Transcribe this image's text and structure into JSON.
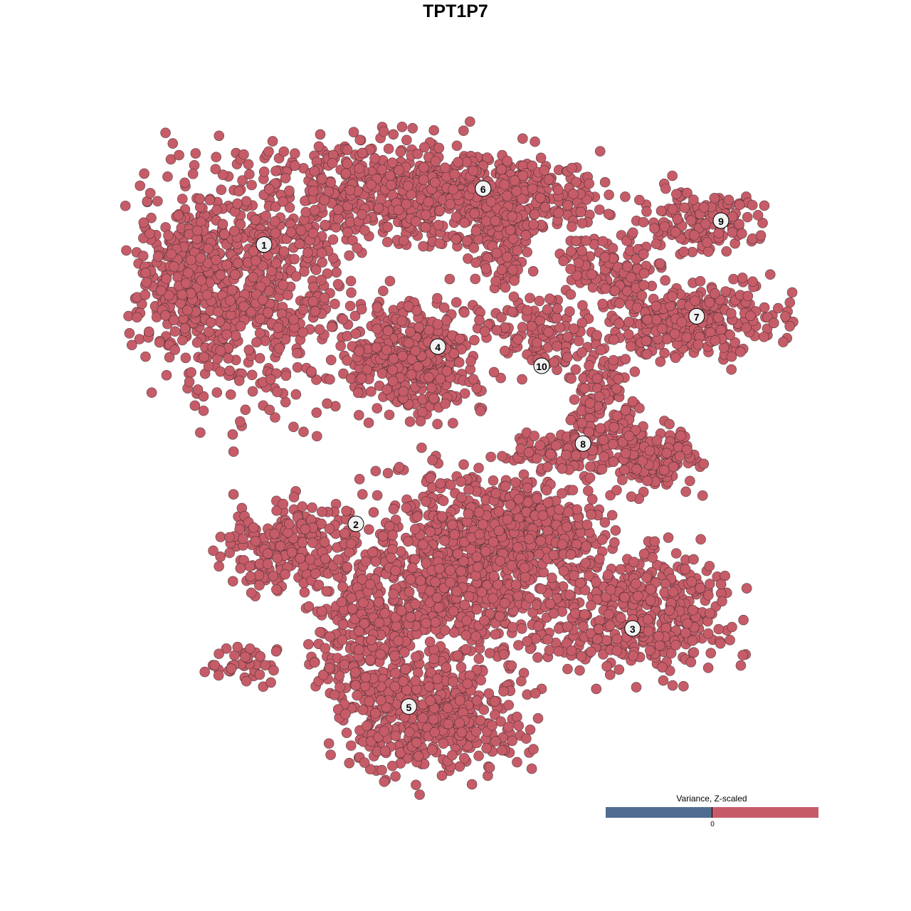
{
  "chart_data": {
    "type": "scatter",
    "title": "TPT1P7",
    "xlim": [
      -40,
      40
    ],
    "ylim": [
      -40,
      40
    ],
    "grid": false,
    "axes_visible": false,
    "point_color": "#c65c68",
    "cluster_labels": [
      {
        "label": "1",
        "x": -23.25,
        "y": 24.7
      },
      {
        "label": "2",
        "x": -12.5,
        "y": -8.0
      },
      {
        "label": "3",
        "x": 19.9,
        "y": -20.25
      },
      {
        "label": "4",
        "x": -2.9,
        "y": 12.75
      },
      {
        "label": "5",
        "x": -6.3,
        "y": -29.4
      },
      {
        "label": "6",
        "x": 2.4,
        "y": 31.25
      },
      {
        "label": "7",
        "x": 27.4,
        "y": 16.3
      },
      {
        "label": "8",
        "x": 14.1,
        "y": 1.4
      },
      {
        "label": "9",
        "x": 30.25,
        "y": 27.5
      },
      {
        "label": "10",
        "x": 9.25,
        "y": 10.5
      }
    ],
    "cell_regions": [
      {
        "x": -25.8,
        "y": 20,
        "sx": 10.8,
        "sy": 12.5,
        "n": 700
      },
      {
        "x": -32.5,
        "y": 21.7,
        "sx": 4.2,
        "sy": 6.7,
        "n": 150
      },
      {
        "x": -7.5,
        "y": 30.8,
        "sx": 13.3,
        "sy": 5.8,
        "n": 500
      },
      {
        "x": 5.8,
        "y": 30,
        "sx": 10,
        "sy": 4.2,
        "n": 300
      },
      {
        "x": -5.8,
        "y": 11.7,
        "sx": 6.7,
        "sy": 6.25,
        "n": 400
      },
      {
        "x": 4.2,
        "y": 24.2,
        "sx": 3.3,
        "sy": 4.2,
        "n": 80
      },
      {
        "x": 17.5,
        "y": 21.7,
        "sx": 5,
        "sy": 3.3,
        "n": 120
      },
      {
        "x": 27.5,
        "y": 15.8,
        "sx": 9.2,
        "sy": 4.2,
        "n": 300
      },
      {
        "x": 28.3,
        "y": 27.5,
        "sx": 7.5,
        "sy": 3.3,
        "n": 150
      },
      {
        "x": 9.2,
        "y": 14.2,
        "sx": 5.8,
        "sy": 4.2,
        "n": 120
      },
      {
        "x": 16.7,
        "y": 6.7,
        "sx": 3.3,
        "sy": 5.8,
        "n": 120
      },
      {
        "x": 22.5,
        "y": -0.8,
        "sx": 5,
        "sy": 3.3,
        "n": 150
      },
      {
        "x": 11.7,
        "y": 0.8,
        "sx": 6.7,
        "sy": 2.5,
        "n": 100
      },
      {
        "x": -20,
        "y": -10.8,
        "sx": 7.5,
        "sy": 5,
        "n": 220
      },
      {
        "x": -25,
        "y": -24.2,
        "sx": 4.2,
        "sy": 2.1,
        "n": 40
      },
      {
        "x": 0,
        "y": -13.3,
        "sx": 10.8,
        "sy": 10,
        "n": 900
      },
      {
        "x": 9.2,
        "y": -8.3,
        "sx": 6.7,
        "sy": 5,
        "n": 250
      },
      {
        "x": 20.8,
        "y": -18.3,
        "sx": 10,
        "sy": 6.7,
        "n": 450
      },
      {
        "x": -3.3,
        "y": -30.8,
        "sx": 10,
        "sy": 5.8,
        "n": 450
      },
      {
        "x": -11.7,
        "y": -21.7,
        "sx": 5,
        "sy": 6.7,
        "n": 200
      }
    ],
    "legend": {
      "title": "Variance, Z-scaled",
      "tick": "0",
      "low_color": "#4f6d8f",
      "high_color": "#c65c68",
      "placement": "bottom-right"
    }
  }
}
